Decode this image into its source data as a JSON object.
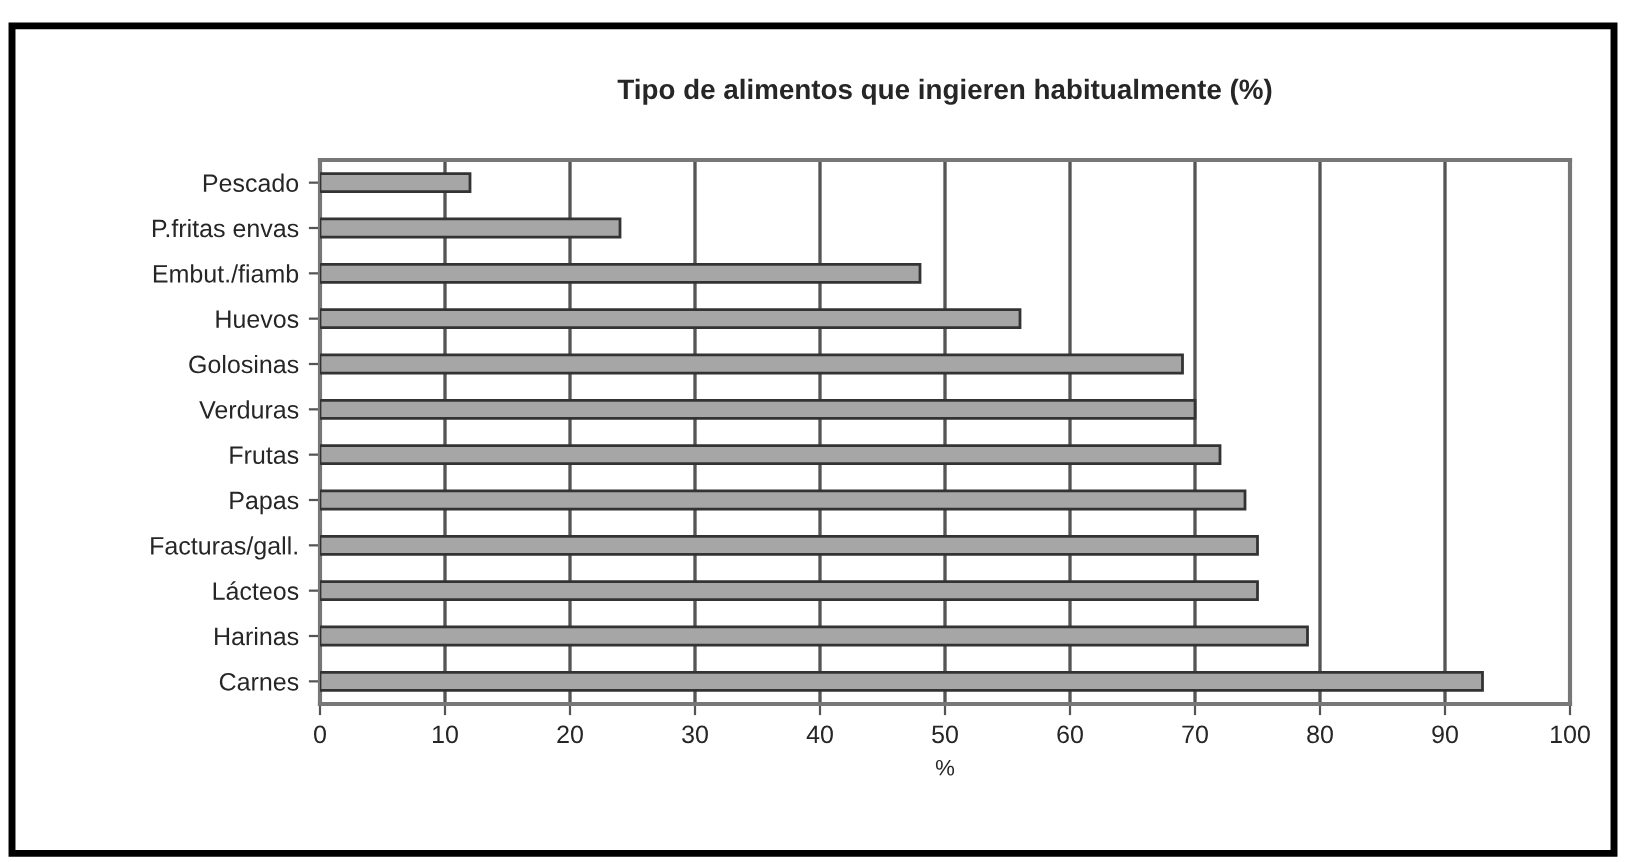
{
  "chart_data": {
    "type": "bar",
    "orientation": "horizontal",
    "title": "Tipo de alimentos que ingieren habitualmente (%)",
    "xlabel": "%",
    "categories": [
      "Pescado",
      "P.fritas envas",
      "Embut./fiamb",
      "Huevos",
      "Golosinas",
      "Verduras",
      "Frutas",
      "Papas",
      "Facturas/gall.",
      "Lácteos",
      "Harinas",
      "Carnes"
    ],
    "values": [
      12,
      24,
      48,
      56,
      69,
      70,
      72,
      74,
      75,
      75,
      79,
      93
    ],
    "color": "#a6a6a6",
    "xlim": [
      0,
      100
    ],
    "xticks": [
      0,
      10,
      20,
      30,
      40,
      50,
      60,
      70,
      80,
      90,
      100
    ],
    "grid": "x"
  }
}
